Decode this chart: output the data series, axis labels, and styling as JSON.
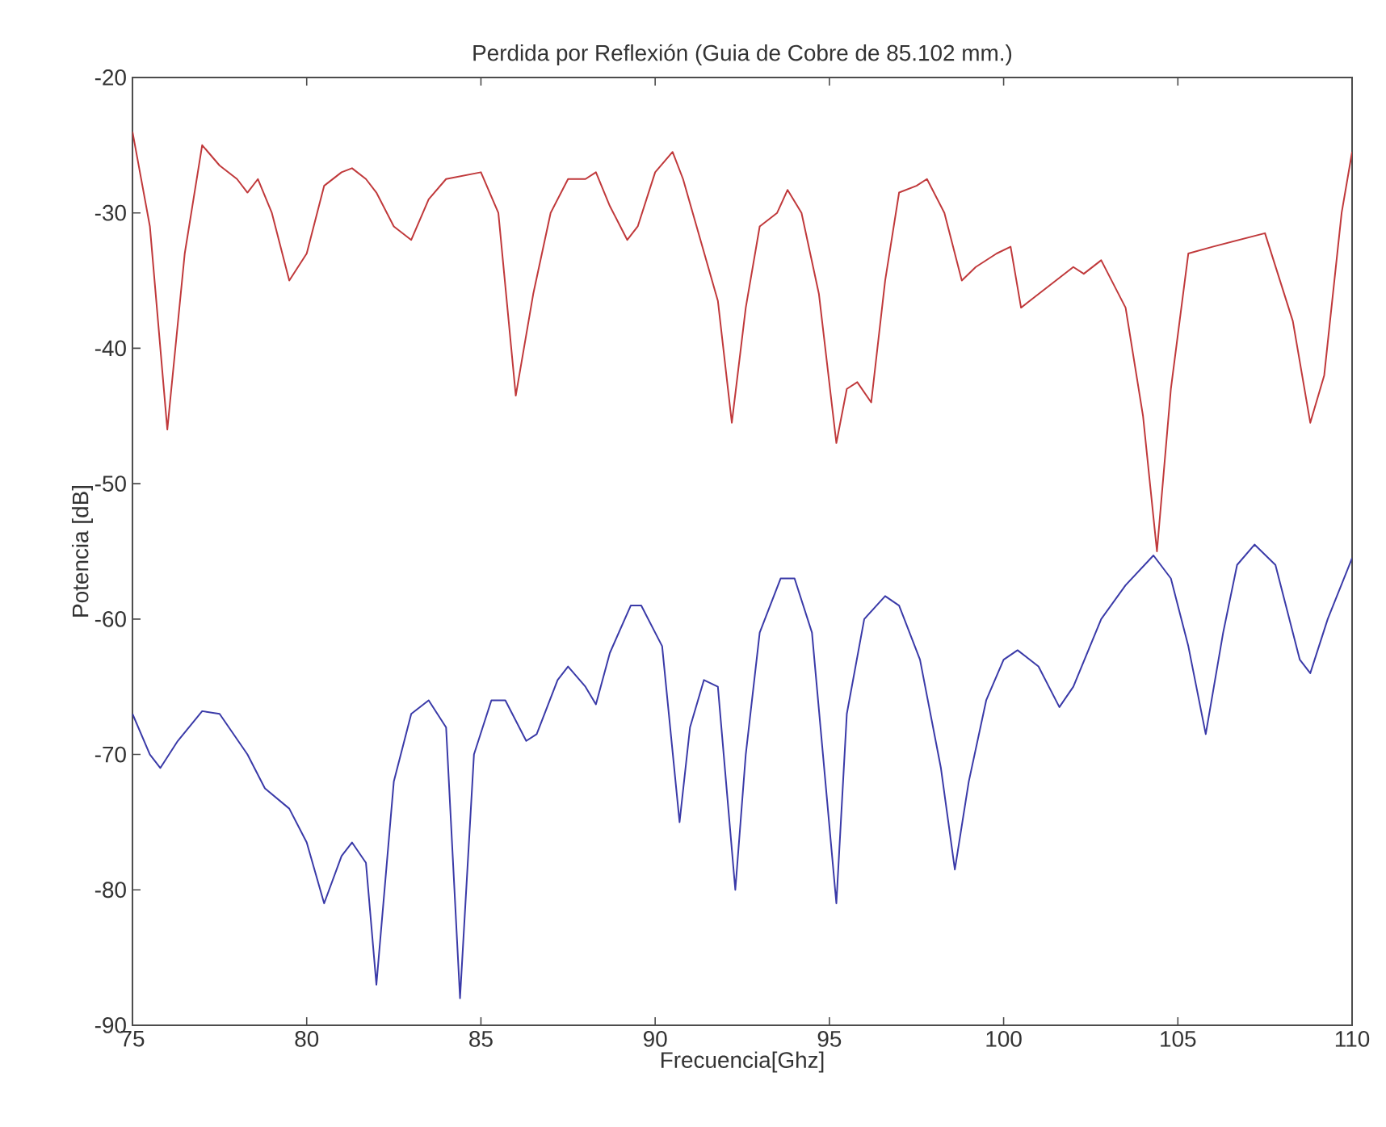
{
  "chart_data": {
    "type": "line",
    "title": "Perdida por Reflexión (Guia de Cobre de 85.102 mm.)",
    "xlabel": "Frecuencia[Ghz]",
    "ylabel": "Potencia [dB]",
    "xlim": [
      75,
      110
    ],
    "ylim": [
      -90,
      -20
    ],
    "xticks": [
      75,
      80,
      85,
      90,
      95,
      100,
      105,
      110
    ],
    "yticks": [
      -90,
      -80,
      -70,
      -60,
      -50,
      -40,
      -30,
      -20
    ],
    "marker": "none",
    "line_style": "solid",
    "series": [
      {
        "color": "#c0393b",
        "x": [
          75,
          75.5,
          76.0,
          76.5,
          77.0,
          77.5,
          78,
          78.3,
          78.6,
          79,
          79.5,
          80,
          80.5,
          81,
          81.3,
          81.7,
          82,
          82.5,
          83,
          83.5,
          84,
          85,
          85.5,
          86,
          86.5,
          87,
          87.5,
          88,
          88.3,
          88.7,
          89.2,
          89.5,
          90,
          90.5,
          90.8,
          91.3,
          91.8,
          92.2,
          92.6,
          93,
          93.5,
          93.8,
          94.2,
          94.7,
          95.2,
          95.5,
          95.8,
          96.2,
          96.6,
          97,
          97.5,
          97.8,
          98.3,
          98.8,
          99.2,
          99.8,
          100.2,
          100.5,
          101,
          101.5,
          102,
          102.3,
          102.8,
          103.5,
          104,
          104.4,
          104.8,
          105.3,
          106,
          107.5,
          108.3,
          108.8,
          109.2,
          109.7,
          110
        ],
        "values": [
          -24,
          -31,
          -46,
          -33,
          -25,
          -26.5,
          -27.5,
          -28.5,
          -27.5,
          -30,
          -35,
          -33,
          -28,
          -27,
          -26.7,
          -27.5,
          -28.5,
          -31,
          -32,
          -29,
          -27.5,
          -27,
          -30,
          -43.5,
          -36,
          -30,
          -27.5,
          -27.5,
          -27,
          -29.5,
          -32,
          -31,
          -27,
          -25.5,
          -27.5,
          -32,
          -36.5,
          -45.5,
          -37,
          -31,
          -30,
          -28.3,
          -30,
          -36,
          -47,
          -43,
          -42.5,
          -44,
          -35,
          -28.5,
          -28,
          -27.5,
          -30,
          -35,
          -34,
          -33,
          -32.5,
          -37,
          -36,
          -35,
          -34,
          -34.5,
          -33.5,
          -37,
          -45,
          -55,
          -43,
          -33,
          -32.5,
          -31.5,
          -38,
          -45.5,
          -42,
          -30,
          -25.5
        ]
      },
      {
        "color": "#3a3aa8",
        "x": [
          75,
          75.5,
          75.8,
          76.3,
          77,
          77.5,
          78.3,
          78.8,
          79.5,
          80,
          80.5,
          81,
          81.3,
          81.7,
          82,
          82.5,
          83,
          83.5,
          84,
          84.4,
          84.8,
          85.3,
          85.7,
          86.3,
          86.6,
          87.2,
          87.5,
          88,
          88.3,
          88.7,
          89.3,
          89.6,
          90.2,
          90.7,
          91.0,
          91.4,
          91.8,
          92.3,
          92.6,
          93,
          93.6,
          94,
          94.5,
          95.2,
          95.5,
          96,
          96.6,
          97,
          97.6,
          98.2,
          98.6,
          99,
          99.5,
          100,
          100.4,
          101,
          101.6,
          102,
          102.8,
          103.5,
          104.3,
          104.8,
          105.3,
          105.8,
          106.3,
          106.7,
          107.2,
          107.8,
          108.5,
          108.8,
          109.3,
          110
        ],
        "values": [
          -67,
          -70,
          -71,
          -69,
          -66.8,
          -67,
          -70,
          -72.5,
          -74,
          -76.5,
          -81,
          -77.5,
          -76.5,
          -78,
          -87,
          -72,
          -67,
          -66,
          -68,
          -88,
          -70,
          -66,
          -66,
          -69,
          -68.5,
          -64.5,
          -63.5,
          -65,
          -66.3,
          -62.5,
          -59,
          -59,
          -62,
          -75,
          -68,
          -64.5,
          -65,
          -80,
          -70,
          -61,
          -57,
          -57,
          -61,
          -81,
          -67,
          -60,
          -58.3,
          -59,
          -63,
          -71,
          -78.5,
          -72,
          -66,
          -63,
          -62.3,
          -63.5,
          -66.5,
          -65,
          -60,
          -57.5,
          -55.3,
          -57,
          -62,
          -68.5,
          -61,
          -56,
          -54.5,
          -56,
          -63,
          -64,
          -60,
          -55.5
        ]
      }
    ]
  }
}
